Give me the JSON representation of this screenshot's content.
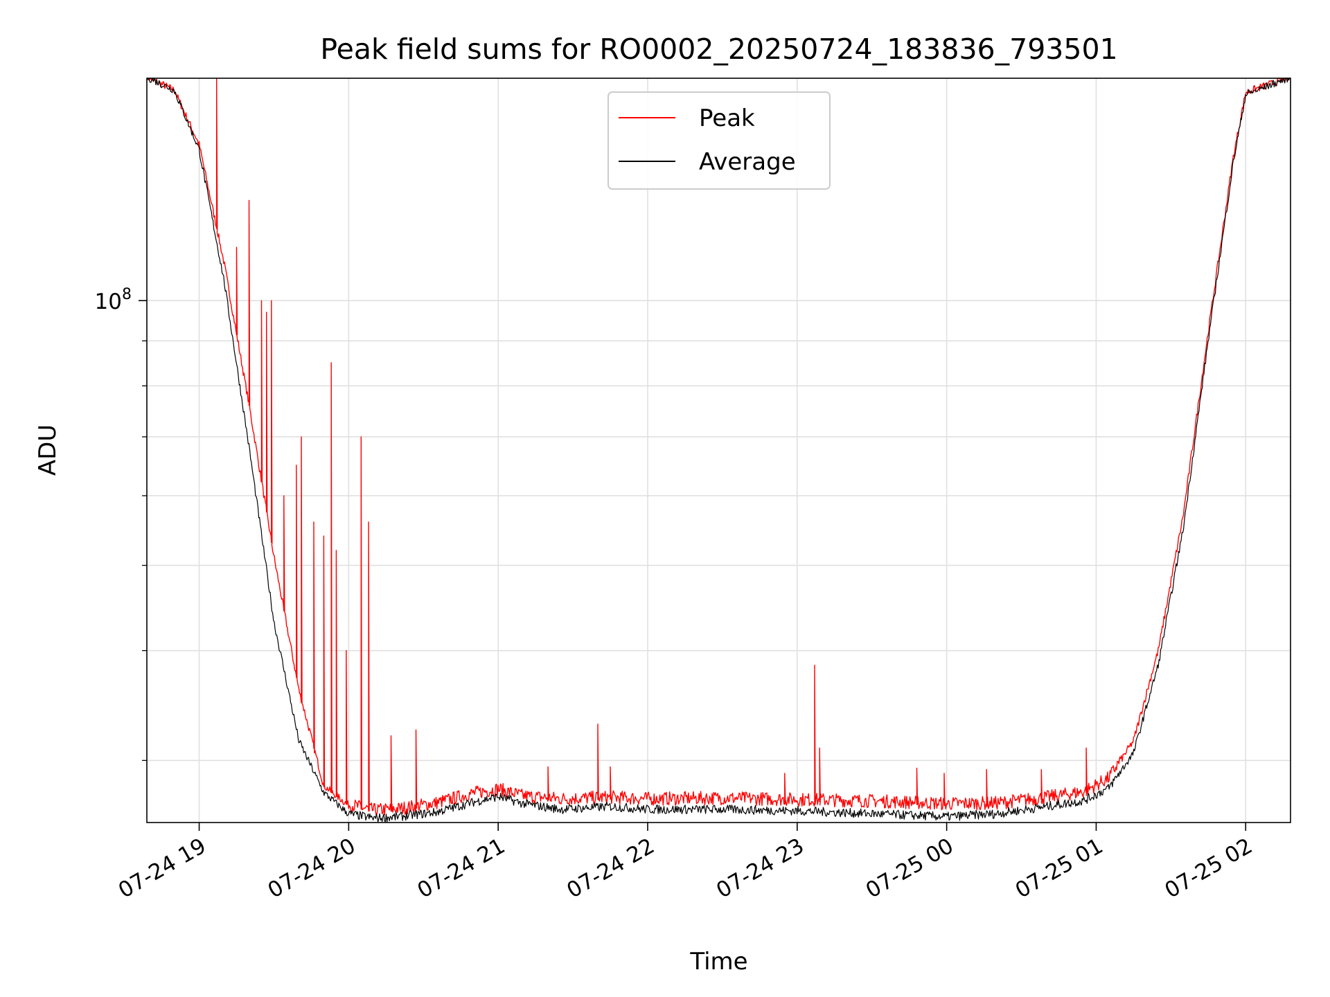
{
  "chart_data": {
    "type": "line",
    "title": "Peak field sums for RO0002_20250724_183836_793501",
    "xlabel": "Time",
    "ylabel": "ADU",
    "y_scale": "log",
    "ylim": [
      25500000,
      179000000
    ],
    "xlim": [
      "2025-07-24 18:39",
      "2025-07-25 02:18"
    ],
    "x_ticks": [
      {
        "t": "2025-07-24 19:00",
        "label": "07-24 19"
      },
      {
        "t": "2025-07-24 20:00",
        "label": "07-24 20"
      },
      {
        "t": "2025-07-24 21:00",
        "label": "07-24 21"
      },
      {
        "t": "2025-07-24 22:00",
        "label": "07-24 22"
      },
      {
        "t": "2025-07-24 23:00",
        "label": "07-24 23"
      },
      {
        "t": "2025-07-25 00:00",
        "label": "07-25 00"
      },
      {
        "t": "2025-07-25 01:00",
        "label": "07-25 01"
      },
      {
        "t": "2025-07-25 02:00",
        "label": "07-25 02"
      }
    ],
    "y_ticks": [
      {
        "value": 100000000,
        "label": "10",
        "exp": "8"
      }
    ],
    "grid": true,
    "legend_position": "upper-center",
    "series": [
      {
        "name": "Peak",
        "color": "#ff0000",
        "baseline": [
          [
            "2025-07-24 18:39",
            179000000
          ],
          [
            "2025-07-24 18:50",
            173000000
          ],
          [
            "2025-07-24 19:00",
            150000000
          ],
          [
            "2025-07-24 19:10",
            110000000
          ],
          [
            "2025-07-24 19:20",
            76000000
          ],
          [
            "2025-07-24 19:30",
            51000000
          ],
          [
            "2025-07-24 19:40",
            36000000
          ],
          [
            "2025-07-24 19:50",
            28000000
          ],
          [
            "2025-07-24 20:00",
            26600000
          ],
          [
            "2025-07-24 20:10",
            26200000
          ],
          [
            "2025-07-24 20:20",
            26300000
          ],
          [
            "2025-07-24 20:35",
            26700000
          ],
          [
            "2025-07-24 20:50",
            27400000
          ],
          [
            "2025-07-24 21:00",
            27700000
          ],
          [
            "2025-07-24 21:10",
            27200000
          ],
          [
            "2025-07-24 21:25",
            27000000
          ],
          [
            "2025-07-24 21:45",
            27100000
          ],
          [
            "2025-07-24 22:00",
            27000000
          ],
          [
            "2025-07-24 22:30",
            27050000
          ],
          [
            "2025-07-24 23:00",
            26950000
          ],
          [
            "2025-07-24 23:30",
            26850000
          ],
          [
            "2025-07-25 00:00",
            26650000
          ],
          [
            "2025-07-25 00:20",
            26700000
          ],
          [
            "2025-07-25 00:40",
            27100000
          ],
          [
            "2025-07-25 00:55",
            27500000
          ],
          [
            "2025-07-25 01:05",
            28500000
          ],
          [
            "2025-07-25 01:15",
            31500000
          ],
          [
            "2025-07-25 01:25",
            40000000
          ],
          [
            "2025-07-25 01:35",
            57000000
          ],
          [
            "2025-07-25 01:45",
            92000000
          ],
          [
            "2025-07-25 01:55",
            145000000
          ],
          [
            "2025-07-25 02:00",
            172000000
          ],
          [
            "2025-07-25 02:18",
            179000000
          ]
        ],
        "spikes": [
          [
            "2025-07-24 19:07",
            179000000
          ],
          [
            "2025-07-24 19:15",
            115000000
          ],
          [
            "2025-07-24 19:20",
            130000000
          ],
          [
            "2025-07-24 19:25",
            100000000
          ],
          [
            "2025-07-24 19:27",
            97000000
          ],
          [
            "2025-07-24 19:29",
            100000000
          ],
          [
            "2025-07-24 19:34",
            60000000
          ],
          [
            "2025-07-24 19:39",
            65000000
          ],
          [
            "2025-07-24 19:41",
            70000000
          ],
          [
            "2025-07-24 19:46",
            56000000
          ],
          [
            "2025-07-24 19:50",
            54000000
          ],
          [
            "2025-07-24 19:53",
            85000000
          ],
          [
            "2025-07-24 19:55",
            52000000
          ],
          [
            "2025-07-24 19:59",
            40000000
          ],
          [
            "2025-07-24 20:05",
            70000000
          ],
          [
            "2025-07-24 20:08",
            56000000
          ],
          [
            "2025-07-24 20:17",
            32000000
          ],
          [
            "2025-07-24 20:27",
            32500000
          ],
          [
            "2025-07-24 21:20",
            29500000
          ],
          [
            "2025-07-24 21:40",
            33000000
          ],
          [
            "2025-07-24 21:45",
            29500000
          ],
          [
            "2025-07-24 22:55",
            29000000
          ],
          [
            "2025-07-24 23:07",
            38500000
          ],
          [
            "2025-07-24 23:09",
            31000000
          ],
          [
            "2025-07-24 23:48",
            29400000
          ],
          [
            "2025-07-24 23:59",
            29000000
          ],
          [
            "2025-07-25 00:16",
            29300000
          ],
          [
            "2025-07-25 00:38",
            29300000
          ],
          [
            "2025-07-25 00:56",
            31000000
          ]
        ]
      },
      {
        "name": "Average",
        "color": "#000000",
        "baseline": [
          [
            "2025-07-24 18:39",
            179000000
          ],
          [
            "2025-07-24 18:50",
            173000000
          ],
          [
            "2025-07-24 19:00",
            148000000
          ],
          [
            "2025-07-24 19:10",
            105000000
          ],
          [
            "2025-07-24 19:20",
            68000000
          ],
          [
            "2025-07-24 19:30",
            43000000
          ],
          [
            "2025-07-24 19:40",
            31500000
          ],
          [
            "2025-07-24 19:50",
            27500000
          ],
          [
            "2025-07-24 20:00",
            26000000
          ],
          [
            "2025-07-24 20:10",
            25700000
          ],
          [
            "2025-07-24 20:20",
            25800000
          ],
          [
            "2025-07-24 20:35",
            26100000
          ],
          [
            "2025-07-24 20:50",
            26800000
          ],
          [
            "2025-07-24 21:00",
            27200000
          ],
          [
            "2025-07-24 21:10",
            26700000
          ],
          [
            "2025-07-24 21:25",
            26300000
          ],
          [
            "2025-07-24 21:45",
            26500000
          ],
          [
            "2025-07-24 22:00",
            26300000
          ],
          [
            "2025-07-24 22:30",
            26300000
          ],
          [
            "2025-07-24 23:00",
            26200000
          ],
          [
            "2025-07-24 23:30",
            26000000
          ],
          [
            "2025-07-25 00:00",
            25800000
          ],
          [
            "2025-07-25 00:20",
            26000000
          ],
          [
            "2025-07-25 00:40",
            26500000
          ],
          [
            "2025-07-25 00:55",
            26900000
          ],
          [
            "2025-07-25 01:05",
            27800000
          ],
          [
            "2025-07-25 01:15",
            30500000
          ],
          [
            "2025-07-25 01:25",
            38500000
          ],
          [
            "2025-07-25 01:35",
            55000000
          ],
          [
            "2025-07-25 01:45",
            90000000
          ],
          [
            "2025-07-25 01:55",
            143000000
          ],
          [
            "2025-07-25 02:00",
            171000000
          ],
          [
            "2025-07-25 02:18",
            179000000
          ]
        ]
      }
    ]
  }
}
